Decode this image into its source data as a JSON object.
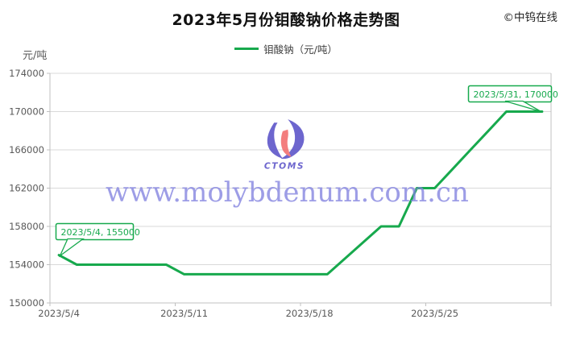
{
  "header": {
    "title": "2023年5月份钼酸钠价格走势图",
    "copyright": "©中钨在线"
  },
  "legend": {
    "label": "钼酸钠（元/吨）"
  },
  "watermark": {
    "text": "www.molybdenum.com.cn",
    "logo_text": "CTOMS",
    "text_color": "#8282e0",
    "logo_blue": "#5a52c8",
    "logo_red": "#f26d6d"
  },
  "colors": {
    "line_green": "#17a94d",
    "annotation_green": "#17a94d",
    "gridline": "#d9d9d9",
    "axis": "#c0c0c0",
    "tick_label": "#595959"
  },
  "chart_data": {
    "type": "line",
    "title": "2023年5月份钼酸钠价格走势图",
    "ylabel": "元/吨",
    "grid": "horizontal",
    "legend_position": "top",
    "ylim": [
      150000,
      174000
    ],
    "y_ticks": [
      150000,
      154000,
      158000,
      162000,
      166000,
      170000,
      174000
    ],
    "x_tick_labels": [
      "2023/5/4",
      "2023/5/11",
      "2023/5/18",
      "2023/5/25"
    ],
    "x": [
      "2023/5/4",
      "2023/5/5",
      "2023/5/6",
      "2023/5/7",
      "2023/5/8",
      "2023/5/9",
      "2023/5/10",
      "2023/5/11",
      "2023/5/12",
      "2023/5/13",
      "2023/5/14",
      "2023/5/15",
      "2023/5/16",
      "2023/5/17",
      "2023/5/18",
      "2023/5/19",
      "2023/5/20",
      "2023/5/21",
      "2023/5/22",
      "2023/5/23",
      "2023/5/24",
      "2023/5/25",
      "2023/5/26",
      "2023/5/27",
      "2023/5/28",
      "2023/5/29",
      "2023/5/30",
      "2023/5/31"
    ],
    "series": [
      {
        "name": "钼酸钠（元/吨）",
        "color": "#17a94d",
        "values": [
          155000,
          154000,
          154000,
          154000,
          154000,
          154000,
          154000,
          153000,
          153000,
          153000,
          153000,
          153000,
          153000,
          153000,
          153000,
          153000,
          154667,
          156333,
          158000,
          158000,
          162000,
          162000,
          164000,
          166000,
          168000,
          170000,
          170000,
          170000
        ]
      }
    ],
    "annotations": [
      {
        "text": "2023/5/4, 155000",
        "x": "2023/5/4",
        "y": 155000
      },
      {
        "text": "2023/5/31, 170000",
        "x": "2023/5/31",
        "y": 170000
      }
    ]
  }
}
